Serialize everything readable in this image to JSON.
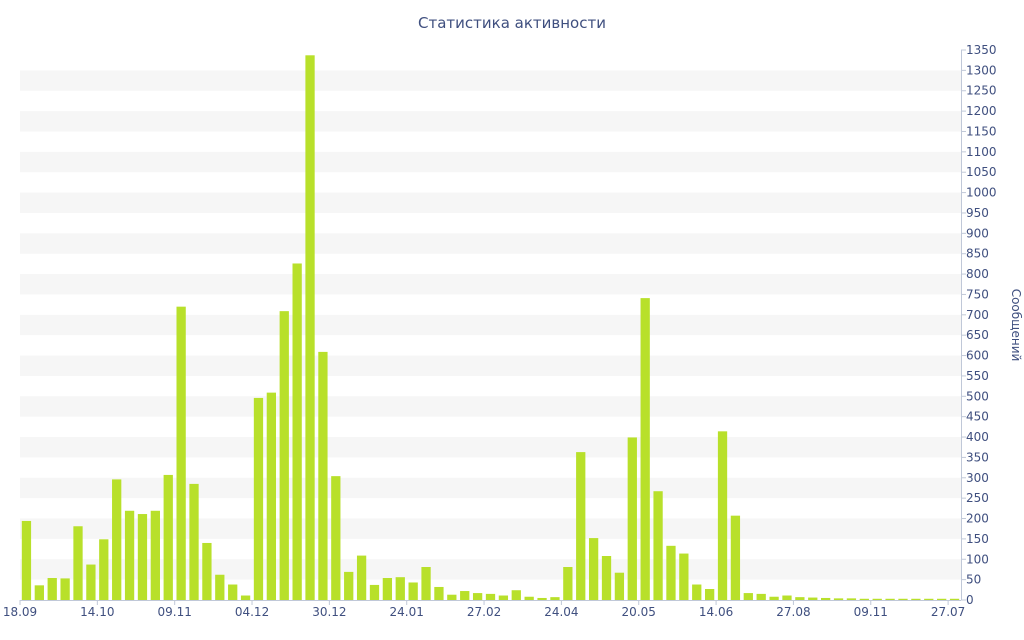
{
  "chart_data": {
    "type": "bar",
    "title": "Статистика активности",
    "ylabel": "Сообщений",
    "xlabel": "",
    "ylim": [
      0,
      1350
    ],
    "ytick_step": 50,
    "grid": "alternating horizontal bands",
    "y_axis_side": "right",
    "bar_color": "#b8e02a",
    "band_color": "#f6f6f6",
    "text_color": "#3f4f7f",
    "x_tick_labels": [
      "18.09",
      "14.10",
      "09.11",
      "04.12",
      "30.12",
      "24.01",
      "27.02",
      "24.04",
      "20.05",
      "14.06",
      "27.08",
      "09.11",
      "27.07"
    ],
    "x_tick_indices": [
      0,
      6,
      12,
      18,
      24,
      30,
      36,
      42,
      48,
      54,
      60,
      66,
      72
    ],
    "values": [
      194,
      36,
      54,
      53,
      181,
      87,
      149,
      296,
      219,
      211,
      219,
      307,
      720,
      285,
      140,
      62,
      38,
      11,
      496,
      509,
      709,
      826,
      1337,
      609,
      304,
      69,
      109,
      37,
      54,
      56,
      43,
      81,
      32,
      13,
      22,
      17,
      15,
      11,
      24,
      8,
      5,
      7,
      81,
      363,
      152,
      108,
      67,
      399,
      741,
      267,
      133,
      114,
      38,
      27,
      414,
      207,
      17,
      15,
      8,
      11,
      7,
      6,
      5,
      4,
      4,
      3,
      3,
      3,
      3,
      3,
      3,
      3,
      3
    ]
  }
}
